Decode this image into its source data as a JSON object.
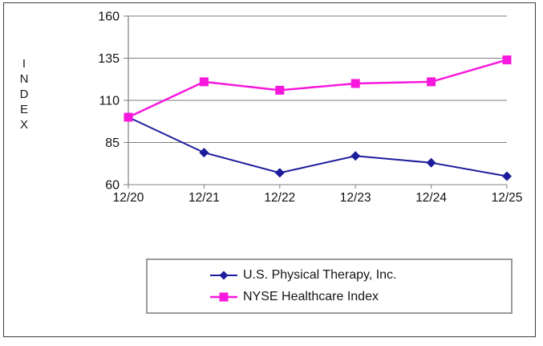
{
  "window": {
    "background": "#ffffff",
    "frame_border_color": "#3c3c3c"
  },
  "chart_data": {
    "type": "line",
    "title": "",
    "xlabel": "",
    "ylabel": "INDEX",
    "categories": [
      "12/20",
      "12/21",
      "12/22",
      "12/23",
      "12/24",
      "12/25"
    ],
    "yticks": [
      160,
      135,
      110,
      85,
      60
    ],
    "ylim": [
      60,
      160
    ],
    "grid": "horizontal",
    "gridline_color": "#7f7f7f",
    "axis_color": "#7f7f7f",
    "tick_label_color": "#111111",
    "legend_position": "bottom-box",
    "series": [
      {
        "name": "U.S. Physical Therapy, Inc.",
        "marker": "diamond",
        "color": "#1c1c9c",
        "values": [
          100,
          79,
          67,
          77,
          73,
          65
        ]
      },
      {
        "name": "NYSE Healthcare Index",
        "marker": "square",
        "color": "#f717dd",
        "values": [
          100,
          121,
          116,
          120,
          121,
          134
        ]
      }
    ]
  }
}
